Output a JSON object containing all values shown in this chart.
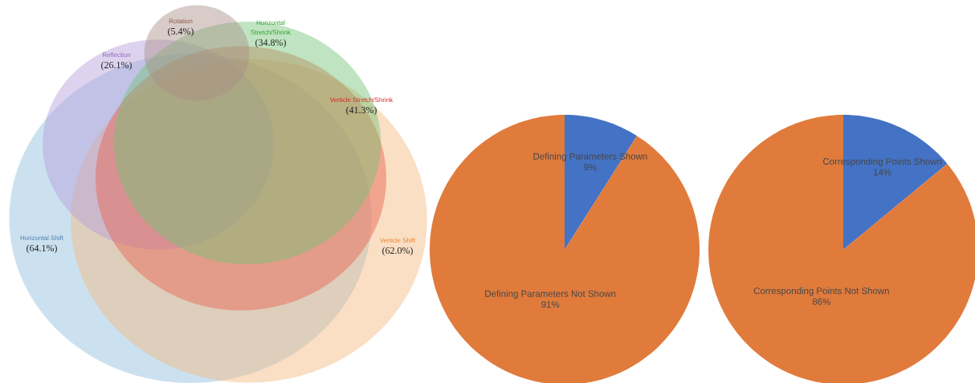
{
  "chart_data": [
    {
      "type": "other",
      "categories": [
        "Horizontal Shift",
        "Verticle Shift",
        "Reflection",
        "Verticle Stretch/Shrink",
        "Horizontal Stretch/Shrink",
        "Rotation"
      ],
      "values": [
        64.1,
        62.0,
        26.1,
        41.3,
        34.8,
        5.4
      ],
      "value_labels": [
        "(64.1%)",
        "(62.0%)",
        "(26.1%)",
        "(41.3%)",
        "(34.8%)",
        "(5.4%)"
      ],
      "colors": [
        "#8fbcdb",
        "#f5b97f",
        "#b39ddb",
        "#e8604c",
        "#74c476",
        "#a88d85"
      ]
    },
    {
      "type": "pie",
      "categories": [
        "Defining Parameters Shown",
        "Defining Parameters Not Shown"
      ],
      "values": [
        9,
        91
      ],
      "value_labels": [
        "9%",
        "91%"
      ],
      "colors": [
        "#4472c4",
        "#e07b3c"
      ]
    },
    {
      "type": "pie",
      "categories": [
        "Corresponding Points Shown",
        "Corresponding Points Not Shown"
      ],
      "values": [
        14,
        86
      ],
      "value_labels": [
        "14%",
        "86%"
      ],
      "colors": [
        "#4472c4",
        "#e07b3c"
      ]
    }
  ]
}
